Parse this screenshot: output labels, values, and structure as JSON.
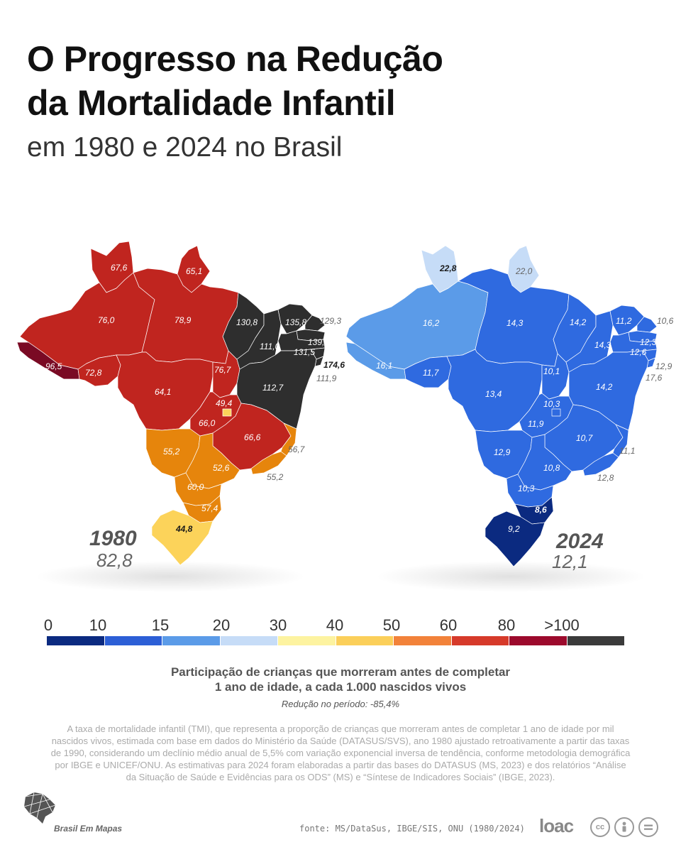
{
  "header": {
    "title_line1": "O Progresso na Redução",
    "title_line2": "da Mortalidade Infantil",
    "subtitle": "em 1980 e 2024 no Brasil"
  },
  "map_1980": {
    "year": "1980",
    "national_rate": "82,8",
    "states": [
      {
        "state": "RR",
        "value": "67,6"
      },
      {
        "state": "AP",
        "value": "65,1"
      },
      {
        "state": "AM",
        "value": "76,0"
      },
      {
        "state": "PA",
        "value": "78,9"
      },
      {
        "state": "MA",
        "value": "130,8"
      },
      {
        "state": "CE",
        "value": "135,8"
      },
      {
        "state": "RN",
        "value": "129,3"
      },
      {
        "state": "PI",
        "value": "111,0"
      },
      {
        "state": "PB",
        "value": "139,9"
      },
      {
        "state": "PE",
        "value": "131,5"
      },
      {
        "state": "AL",
        "value": "174,6"
      },
      {
        "state": "SE",
        "value": "111,9"
      },
      {
        "state": "AC",
        "value": "96,5"
      },
      {
        "state": "RO",
        "value": "72,8"
      },
      {
        "state": "MT",
        "value": "64,1"
      },
      {
        "state": "TO",
        "value": "76,7"
      },
      {
        "state": "BA",
        "value": "112,7"
      },
      {
        "state": "DF",
        "value": "49,4"
      },
      {
        "state": "GO",
        "value": "66,0"
      },
      {
        "state": "MG",
        "value": "66,6"
      },
      {
        "state": "ES",
        "value": "56,7"
      },
      {
        "state": "MS",
        "value": "55,2"
      },
      {
        "state": "SP",
        "value": "52,6"
      },
      {
        "state": "RJ",
        "value": "55,2"
      },
      {
        "state": "PR",
        "value": "60,0"
      },
      {
        "state": "SC",
        "value": "57,4"
      },
      {
        "state": "RS",
        "value": "44,8"
      }
    ]
  },
  "map_2024": {
    "year": "2024",
    "national_rate": "12,1",
    "states": [
      {
        "state": "RR",
        "value": "22,8"
      },
      {
        "state": "AP",
        "value": "22,0"
      },
      {
        "state": "AM",
        "value": "16,2"
      },
      {
        "state": "PA",
        "value": "14,3"
      },
      {
        "state": "MA",
        "value": "14,2"
      },
      {
        "state": "CE",
        "value": "11,2"
      },
      {
        "state": "RN",
        "value": "10,6"
      },
      {
        "state": "PI",
        "value": "14,3"
      },
      {
        "state": "PB",
        "value": "12,3"
      },
      {
        "state": "PE",
        "value": "12,6"
      },
      {
        "state": "AL",
        "value": "12,9"
      },
      {
        "state": "SE",
        "value": "17,6"
      },
      {
        "state": "AC",
        "value": "16,1"
      },
      {
        "state": "RO",
        "value": "11,7"
      },
      {
        "state": "TO",
        "value": "10,1"
      },
      {
        "state": "BA",
        "value": "14,2"
      },
      {
        "state": "MT",
        "value": "13,4"
      },
      {
        "state": "DF",
        "value": "10,3"
      },
      {
        "state": "GO",
        "value": "11,9"
      },
      {
        "state": "MG",
        "value": "10,7"
      },
      {
        "state": "ES",
        "value": "11,1"
      },
      {
        "state": "MS",
        "value": "12,9"
      },
      {
        "state": "SP",
        "value": "10,8"
      },
      {
        "state": "RJ",
        "value": "12,8"
      },
      {
        "state": "PR",
        "value": "10,3"
      },
      {
        "state": "SC",
        "value": "8,6"
      },
      {
        "state": "RS",
        "value": "9,2"
      }
    ]
  },
  "legend": {
    "ticks": [
      "0",
      "10",
      "15",
      "20",
      "30",
      "40",
      "50",
      "60",
      "80",
      ">100"
    ],
    "colors": [
      "#0b2a80",
      "#2c5fd6",
      "#5b9be8",
      "#c6dcf7",
      "#fdf3a0",
      "#fbcf5a",
      "#f2823a",
      "#d63a2a",
      "#9c0a2c",
      "#3b3b3b"
    ]
  },
  "caption": {
    "line1": "Participação de crianças que morreram antes de completar",
    "line2": "1 ano de idade, a cada 1.000 nascidos vivos",
    "reduction": "Redução no período: -85,4%"
  },
  "methodology_note": "A taxa de mortalidade infantil (TMI), que representa a proporção de crianças que morreram antes de completar 1 ano de idade por mil nascidos vivos, estimada com base em dados do Ministério da Saúde (DATASUS/SVS), ano 1980 ajustado retroativamente a partir das taxas de 1990, considerando um declínio médio anual de 5,5% com variação exponencial inversa de tendência, conforme metodologia demográfica por IBGE e UNICEF/ONU. As estimativas para 2024 foram elaboradas a partir das bases do DATASUS (MS, 2023) e dos relatórios “Análise da Situação de Saúde e Evidências para os ODS” (MS) e “Síntese de Indicadores Sociais” (IBGE, 2023).",
  "footer": {
    "brand": "Brasil Em Mapas",
    "source": "fonte: MS/DataSus, IBGE/SIS, ONU (1980/2024)",
    "logo": "loac",
    "license_icons": [
      "cc-icon",
      "by-icon",
      "nd-icon"
    ]
  },
  "colors": {
    "c_gt100": "#2e2e2e",
    "c_80_100": "#7a0a24",
    "c_60_80": "#c0251f",
    "c_50_60": "#e6850c",
    "c_40_50": "#fcd35a",
    "c_20_30": "#c6dcf7",
    "c_15_20": "#5b9be8",
    "c_10_15": "#2f6ae0",
    "c_0_10": "#0b2a80"
  }
}
